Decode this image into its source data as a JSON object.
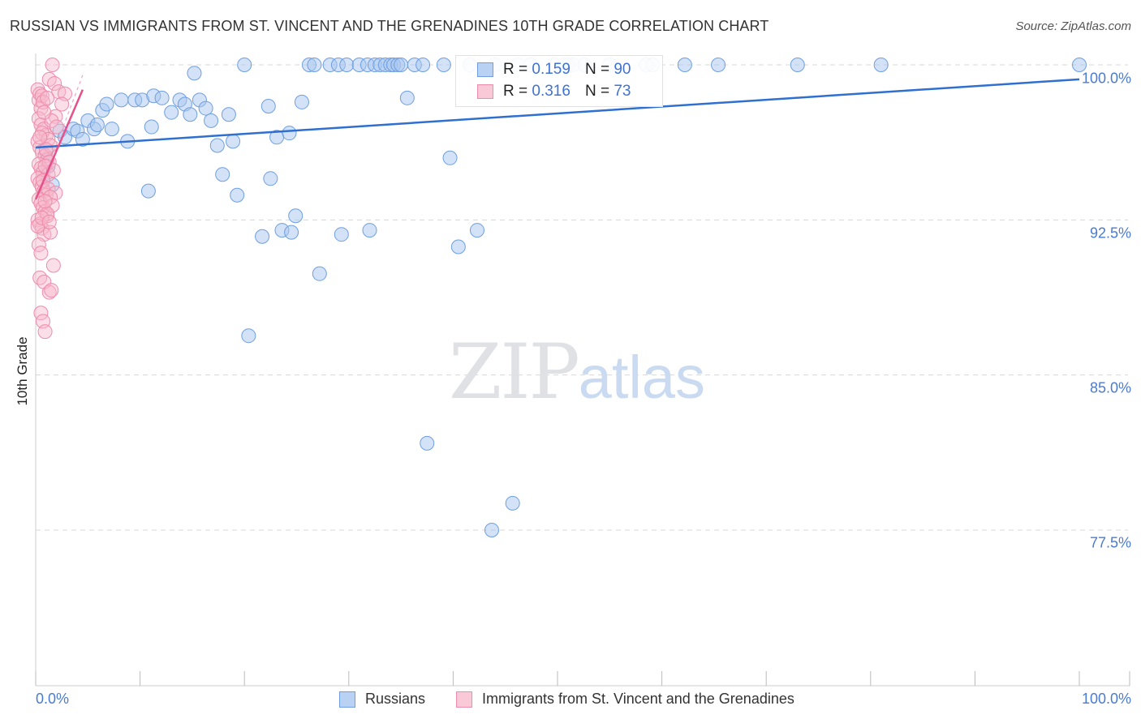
{
  "title": "RUSSIAN VS IMMIGRANTS FROM ST. VINCENT AND THE GRENADINES 10TH GRADE CORRELATION CHART",
  "source": "Source: ZipAtlas.com",
  "watermark": {
    "part1": "ZIP",
    "part2": "atlas"
  },
  "legend": {
    "r_label": "R = ",
    "n_label": "N = ",
    "series": [
      {
        "r": "0.159",
        "n": "90"
      },
      {
        "r": "0.316",
        "n": "73"
      }
    ]
  },
  "colors": {
    "blue_fill": "#a8c6f0",
    "blue_stroke": "#6f9fe0",
    "blue_line": "#2f6fd0",
    "pink_fill": "#f7b8cb",
    "pink_stroke": "#ee8cab",
    "pink_line": "#e8508a",
    "axis_text": "#4a7bd0",
    "grid": "#d8d8d8"
  },
  "chart_data": {
    "type": "scatter",
    "title": "RUSSIAN VS IMMIGRANTS FROM ST. VINCENT AND THE GRENADINES 10TH GRADE CORRELATION CHART",
    "xlabel": "",
    "ylabel": "10th Grade",
    "xlim": [
      0,
      100
    ],
    "ylim": [
      70.0,
      100.75
    ],
    "x_tick_labels": [
      "0.0%",
      "100.0%"
    ],
    "y_ticks": [
      100.0,
      92.5,
      85.0,
      77.5
    ],
    "y_tick_labels": [
      "100.0%",
      "92.5%",
      "85.0%",
      "77.5%"
    ],
    "grid": true,
    "series": [
      {
        "name": "Russians",
        "r": 0.159,
        "n": 90,
        "trend": {
          "x": [
            0,
            100
          ],
          "y": [
            96.0,
            99.3
          ]
        },
        "points": [
          [
            1.0,
            95.8
          ],
          [
            1.6,
            94.2
          ],
          [
            1.2,
            95.1
          ],
          [
            2.3,
            96.8
          ],
          [
            2.8,
            96.5
          ],
          [
            3.6,
            96.9
          ],
          [
            4.0,
            96.8
          ],
          [
            4.5,
            96.4
          ],
          [
            5.0,
            97.3
          ],
          [
            5.6,
            96.9
          ],
          [
            5.9,
            97.1
          ],
          [
            6.4,
            97.8
          ],
          [
            6.8,
            98.1
          ],
          [
            7.3,
            96.9
          ],
          [
            8.2,
            98.3
          ],
          [
            8.8,
            96.3
          ],
          [
            9.5,
            98.3
          ],
          [
            10.2,
            98.3
          ],
          [
            10.8,
            93.9
          ],
          [
            11.3,
            98.5
          ],
          [
            11.1,
            97.0
          ],
          [
            12.1,
            98.4
          ],
          [
            13.0,
            97.7
          ],
          [
            13.8,
            98.3
          ],
          [
            14.3,
            98.1
          ],
          [
            14.8,
            97.6
          ],
          [
            15.2,
            99.6
          ],
          [
            15.7,
            98.3
          ],
          [
            16.3,
            97.9
          ],
          [
            16.8,
            97.3
          ],
          [
            17.4,
            96.1
          ],
          [
            17.9,
            94.7
          ],
          [
            18.5,
            97.6
          ],
          [
            18.9,
            96.3
          ],
          [
            19.3,
            93.7
          ],
          [
            20.0,
            100.0
          ],
          [
            20.4,
            86.9
          ],
          [
            21.7,
            91.7
          ],
          [
            22.3,
            98.0
          ],
          [
            22.5,
            94.5
          ],
          [
            23.1,
            96.5
          ],
          [
            23.6,
            92.0
          ],
          [
            24.3,
            96.7
          ],
          [
            24.5,
            91.9
          ],
          [
            24.9,
            92.7
          ],
          [
            25.5,
            98.2
          ],
          [
            26.2,
            100.0
          ],
          [
            26.7,
            100.0
          ],
          [
            27.2,
            89.9
          ],
          [
            28.2,
            100.0
          ],
          [
            29.0,
            100.0
          ],
          [
            29.3,
            91.8
          ],
          [
            29.8,
            100.0
          ],
          [
            31.0,
            100.0
          ],
          [
            31.8,
            100.0
          ],
          [
            32.0,
            92.0
          ],
          [
            32.5,
            100.0
          ],
          [
            33.0,
            100.0
          ],
          [
            33.5,
            100.0
          ],
          [
            34.0,
            100.0
          ],
          [
            34.3,
            100.0
          ],
          [
            34.7,
            100.0
          ],
          [
            35.0,
            100.0
          ],
          [
            35.6,
            98.4
          ],
          [
            36.3,
            100.0
          ],
          [
            37.1,
            100.0
          ],
          [
            37.5,
            81.7
          ],
          [
            39.1,
            100.0
          ],
          [
            39.7,
            95.5
          ],
          [
            40.5,
            91.2
          ],
          [
            41.6,
            100.0
          ],
          [
            42.3,
            92.0
          ],
          [
            43.7,
            77.5
          ],
          [
            44.0,
            100.0
          ],
          [
            45.7,
            78.8
          ],
          [
            46.2,
            100.0
          ],
          [
            47.4,
            100.0
          ],
          [
            49.7,
            100.0
          ],
          [
            50.6,
            100.0
          ],
          [
            51.0,
            100.0
          ],
          [
            51.5,
            100.0
          ],
          [
            52.6,
            100.0
          ],
          [
            55.0,
            100.0
          ],
          [
            58.5,
            100.0
          ],
          [
            59.1,
            100.0
          ],
          [
            62.2,
            100.0
          ],
          [
            65.4,
            100.0
          ],
          [
            73.0,
            100.0
          ],
          [
            81.0,
            100.0
          ],
          [
            100.0,
            100.0
          ]
        ]
      },
      {
        "name": "Immigrants from St. Vincent and the Grenadines",
        "r": 0.316,
        "n": 73,
        "trend": {
          "x": [
            0,
            4.5
          ],
          "y": [
            93.5,
            98.8
          ]
        },
        "trend_dashed": {
          "x": [
            0,
            4.5
          ],
          "y": [
            93.5,
            99.5
          ]
        },
        "points": [
          [
            0.2,
            98.8
          ],
          [
            0.3,
            98.3
          ],
          [
            0.4,
            98.6
          ],
          [
            0.5,
            97.9
          ],
          [
            0.6,
            98.5
          ],
          [
            0.7,
            98.2
          ],
          [
            0.3,
            97.4
          ],
          [
            0.5,
            97.1
          ],
          [
            0.8,
            96.9
          ],
          [
            1.0,
            96.6
          ],
          [
            0.2,
            96.3
          ],
          [
            0.4,
            96.0
          ],
          [
            0.6,
            95.8
          ],
          [
            0.9,
            95.6
          ],
          [
            1.1,
            95.4
          ],
          [
            0.3,
            95.2
          ],
          [
            0.5,
            95.0
          ],
          [
            0.7,
            94.8
          ],
          [
            1.2,
            94.7
          ],
          [
            0.2,
            94.5
          ],
          [
            0.4,
            94.3
          ],
          [
            0.6,
            94.1
          ],
          [
            0.8,
            93.9
          ],
          [
            1.0,
            93.7
          ],
          [
            0.3,
            93.5
          ],
          [
            0.5,
            93.3
          ],
          [
            0.7,
            93.1
          ],
          [
            0.9,
            92.9
          ],
          [
            1.1,
            92.7
          ],
          [
            0.2,
            92.5
          ],
          [
            0.4,
            92.3
          ],
          [
            0.6,
            92.1
          ],
          [
            0.8,
            91.8
          ],
          [
            0.3,
            91.3
          ],
          [
            0.5,
            90.9
          ],
          [
            1.4,
            91.9
          ],
          [
            1.7,
            90.3
          ],
          [
            0.4,
            89.7
          ],
          [
            0.8,
            89.5
          ],
          [
            1.3,
            89.0
          ],
          [
            1.5,
            89.1
          ],
          [
            0.5,
            88.0
          ],
          [
            0.7,
            87.6
          ],
          [
            0.9,
            87.1
          ],
          [
            1.6,
            100.0
          ],
          [
            1.3,
            99.3
          ],
          [
            1.8,
            99.1
          ],
          [
            2.2,
            98.7
          ],
          [
            2.8,
            98.6
          ],
          [
            2.5,
            98.1
          ],
          [
            1.9,
            97.5
          ],
          [
            1.1,
            98.4
          ],
          [
            1.5,
            97.3
          ],
          [
            2.0,
            97.0
          ],
          [
            0.6,
            96.7
          ],
          [
            1.2,
            96.4
          ],
          [
            1.4,
            96.1
          ],
          [
            1.0,
            95.9
          ],
          [
            1.3,
            95.3
          ],
          [
            0.9,
            95.1
          ],
          [
            1.7,
            94.9
          ],
          [
            0.7,
            94.4
          ],
          [
            1.2,
            94.0
          ],
          [
            1.9,
            93.8
          ],
          [
            1.4,
            93.6
          ],
          [
            1.6,
            93.2
          ],
          [
            1.1,
            92.8
          ],
          [
            0.2,
            92.2
          ],
          [
            0.6,
            92.6
          ],
          [
            0.9,
            93.4
          ],
          [
            1.3,
            92.4
          ],
          [
            0.4,
            96.5
          ],
          [
            0.8,
            97.7
          ]
        ]
      }
    ],
    "legend_position": "top-center"
  },
  "bottom_legend": [
    {
      "label": "Russians"
    },
    {
      "label": "Immigrants from St. Vincent and the Grenadines"
    }
  ]
}
